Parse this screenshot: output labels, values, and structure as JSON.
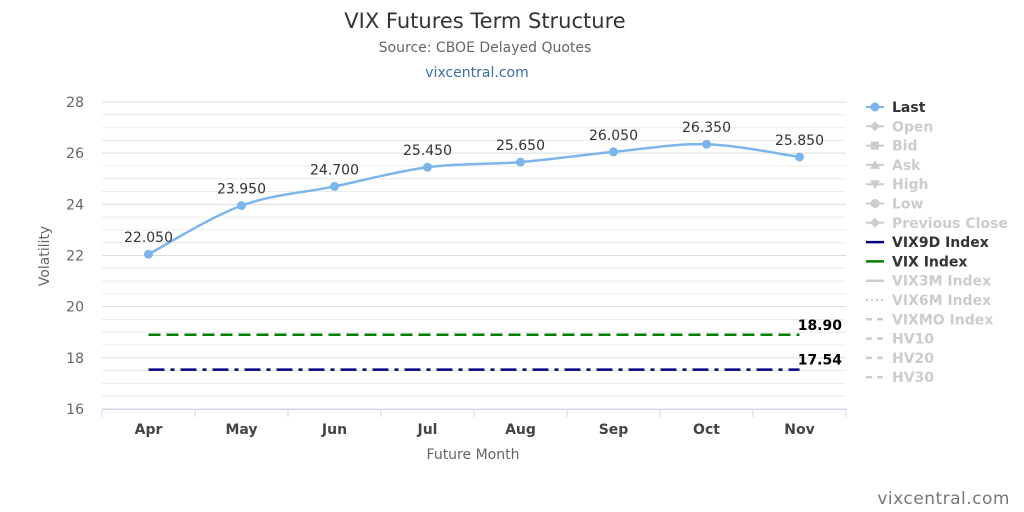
{
  "title": "VIX Futures Term Structure",
  "subtitle": "Source: CBOE Delayed Quotes",
  "link_text": "vixcentral.com",
  "credit": "vixcentral.com",
  "chart_data": {
    "type": "line",
    "title": "VIX Futures Term Structure",
    "subtitle": "Source: CBOE Delayed Quotes",
    "xlabel": "Future Month",
    "ylabel": "Volatility",
    "ylim": [
      16,
      28
    ],
    "yticks": [
      16,
      18,
      20,
      22,
      24,
      26,
      28
    ],
    "grid": true,
    "legend_position": "right",
    "categories": [
      "Apr",
      "May",
      "Jun",
      "Jul",
      "Aug",
      "Sep",
      "Oct",
      "Nov"
    ],
    "series": [
      {
        "name": "Last",
        "values": [
          22.05,
          23.95,
          24.7,
          25.45,
          25.65,
          26.05,
          26.35,
          25.85
        ],
        "labels": [
          "22.050",
          "23.950",
          "24.700",
          "25.450",
          "25.650",
          "26.050",
          "26.350",
          "25.850"
        ],
        "color": "#7cb5ec",
        "visible": true
      },
      {
        "name": "VIX9D Index",
        "value": 17.54,
        "label": "17.54",
        "color": "#000080",
        "dash": "dashdot",
        "visible": true
      },
      {
        "name": "VIX Index",
        "value": 18.9,
        "label": "18.90",
        "color": "#008000",
        "dash": "dash",
        "visible": true
      }
    ],
    "legend": [
      {
        "name": "Last",
        "visible": true,
        "symbol": "circle",
        "color": "#7cb5ec"
      },
      {
        "name": "Open",
        "visible": false,
        "symbol": "diamond"
      },
      {
        "name": "Bid",
        "visible": false,
        "symbol": "square"
      },
      {
        "name": "Ask",
        "visible": false,
        "symbol": "triangle"
      },
      {
        "name": "High",
        "visible": false,
        "symbol": "triangle-down"
      },
      {
        "name": "Low",
        "visible": false,
        "symbol": "circle"
      },
      {
        "name": "Previous Close",
        "visible": false,
        "symbol": "diamond"
      },
      {
        "name": "VIX9D Index",
        "visible": true,
        "symbol": "line",
        "color": "#000080"
      },
      {
        "name": "VIX Index",
        "visible": true,
        "symbol": "line",
        "color": "#008000"
      },
      {
        "name": "VIX3M Index",
        "visible": false,
        "symbol": "line"
      },
      {
        "name": "VIX6M Index",
        "visible": false,
        "symbol": "dotted"
      },
      {
        "name": "VIXMO Index",
        "visible": false,
        "symbol": "dashed"
      },
      {
        "name": "HV10",
        "visible": false,
        "symbol": "dashed"
      },
      {
        "name": "HV20",
        "visible": false,
        "symbol": "dashed"
      },
      {
        "name": "HV30",
        "visible": false,
        "symbol": "dashed"
      }
    ],
    "colors": {
      "hidden": "#cccccc",
      "grid": "#e6e6e6",
      "axis": "#ccd6eb"
    }
  }
}
